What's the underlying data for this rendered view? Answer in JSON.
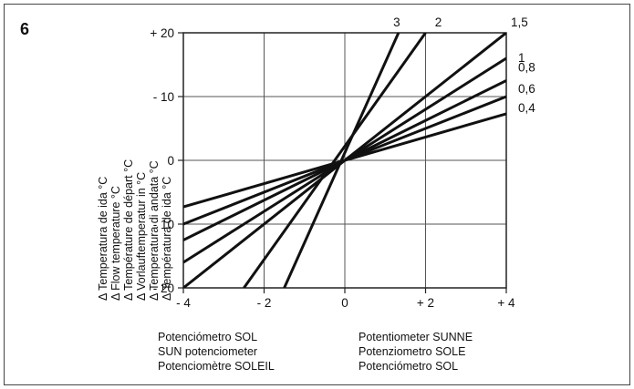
{
  "figure_number": "6",
  "y_axis_labels": [
    "Δ Temperatura de ida °C",
    "Δ Flow temperature °C",
    "Δ Température de départ °C",
    "Δ Vorlauftemperatur in °C",
    "Δ Temperatura di andata °C",
    "Δ Températura de ida °C"
  ],
  "x_axis_captions_left": [
    "Potenciómetro SOL",
    "SUN potenciometer",
    "Potenciomètre SOLEIL"
  ],
  "x_axis_captions_right": [
    "Potentiometer SUNNE",
    "Potenziometro SOLE",
    "Potenciómetro SOL"
  ],
  "chart_data": {
    "type": "line",
    "title": "",
    "xlabel": "",
    "ylabel": "",
    "xlim": [
      -4,
      4
    ],
    "ylim": [
      -20,
      20
    ],
    "grid": true,
    "x_ticks": [
      "- 4",
      "- 2",
      "0",
      "+ 2",
      "+ 4"
    ],
    "y_ticks": [
      "+ 20",
      "- 10",
      "0",
      "- 10",
      "- 20"
    ],
    "series": [
      {
        "name": "3",
        "points": [
          [
            -1.5,
            -20
          ],
          [
            1.33,
            20
          ]
        ]
      },
      {
        "name": "2",
        "points": [
          [
            -2.5,
            -20
          ],
          [
            2.0,
            20
          ]
        ]
      },
      {
        "name": "1,5",
        "points": [
          [
            -4,
            -20
          ],
          [
            4,
            20
          ]
        ]
      },
      {
        "name": "1",
        "points": [
          [
            -4,
            -16
          ],
          [
            4,
            16
          ]
        ]
      },
      {
        "name": "0,8",
        "points": [
          [
            -4,
            -12.5
          ],
          [
            4,
            12.5
          ]
        ]
      },
      {
        "name": "0,6",
        "points": [
          [
            -4,
            -10
          ],
          [
            4,
            10
          ]
        ]
      },
      {
        "name": "0,4",
        "points": [
          [
            -4,
            -7.3
          ],
          [
            4,
            7.3
          ]
        ]
      }
    ]
  }
}
